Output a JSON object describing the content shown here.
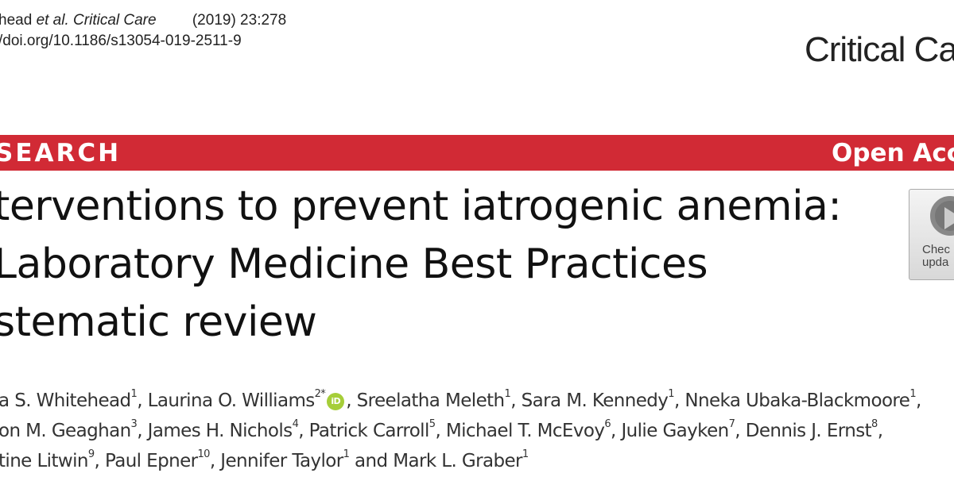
{
  "header": {
    "citation_authors": "head",
    "citation_etal": "et al.",
    "citation_journal": "Critical Care",
    "citation_volume": "(2019) 23:278",
    "doi": "/doi.org/10.1186/s13054-019-2511-9",
    "journal_logo": "Critical Ca"
  },
  "banner": {
    "article_type": "SEARCH",
    "open_access": "Open Acc",
    "color": "#d12a35"
  },
  "title_lines": [
    "terventions to prevent iatrogenic anemia:",
    "Laboratory Medicine Best Practices",
    "stematic review"
  ],
  "check_updates": {
    "line1": "Chec",
    "line2": "upda"
  },
  "authors": {
    "line1": [
      {
        "name": "a S. Whitehead",
        "sup": "1",
        "sep": ", "
      },
      {
        "name": "Laurina O. Williams",
        "sup": "2*",
        "sep": ", "
      },
      {
        "name": "Sreelatha Meleth",
        "sup": "1",
        "sep": ", "
      },
      {
        "name": "Sara M. Kennedy",
        "sup": "1",
        "sep": ", "
      },
      {
        "name": "Nneka Ubaka-Blackmoore",
        "sup": "1",
        "sep": ","
      }
    ],
    "line2": [
      {
        "name": "on M. Geaghan",
        "sup": "3",
        "sep": ", "
      },
      {
        "name": "James H. Nichols",
        "sup": "4",
        "sep": ", "
      },
      {
        "name": "Patrick Carroll",
        "sup": "5",
        "sep": ", "
      },
      {
        "name": "Michael T. McEvoy",
        "sup": "6",
        "sep": ", "
      },
      {
        "name": "Julie Gayken",
        "sup": "7",
        "sep": ", "
      },
      {
        "name": "Dennis J. Ernst",
        "sup": "8",
        "sep": ","
      }
    ],
    "line3": [
      {
        "name": "tine Litwin",
        "sup": "9",
        "sep": ", "
      },
      {
        "name": "Paul Epner",
        "sup": "10",
        "sep": ", "
      },
      {
        "name": "Jennifer Taylor",
        "sup": "1",
        "sep": " and "
      },
      {
        "name": "Mark L. Graber",
        "sup": "1",
        "sep": ""
      }
    ],
    "orcid_label": "iD"
  }
}
